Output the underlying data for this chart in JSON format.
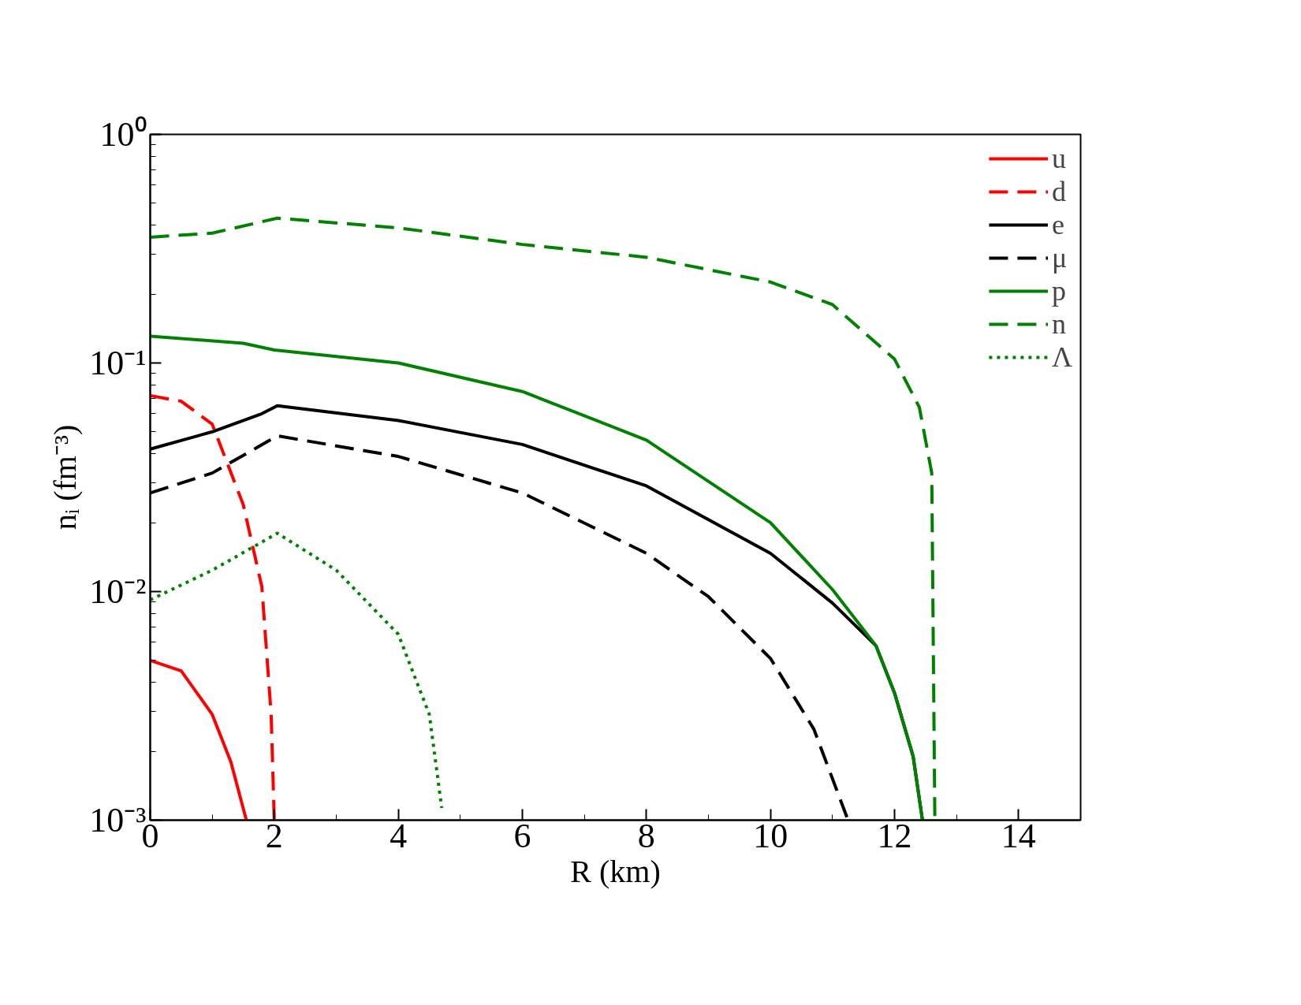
{
  "chart_data": {
    "type": "line",
    "xlabel": "R (km)",
    "ylabel": "nᵢ (fm⁻³)",
    "log": "y",
    "grid": false,
    "legend": "top right",
    "xlim": [
      0,
      15
    ],
    "ylim": [
      0.001,
      1
    ],
    "xticks": [
      0,
      2,
      4,
      6,
      8,
      10,
      12,
      14
    ],
    "yticks": [
      {
        "value": 0.001,
        "label": "10⁻³"
      },
      {
        "value": 0.01,
        "label": "10⁻²"
      },
      {
        "value": 0.1,
        "label": "10⁻¹"
      },
      {
        "value": 1,
        "label": "10⁰"
      }
    ],
    "series": [
      {
        "name": "u",
        "color": "#ff0000",
        "line_style": "solid",
        "x": [
          0,
          0.5,
          1,
          1.3,
          1.55
        ],
        "values": [
          0.005,
          0.0045,
          0.0029,
          0.0018,
          0.001
        ]
      },
      {
        "name": "d",
        "color": "#ff0000",
        "line_style": "dashed",
        "x": [
          0,
          0.5,
          1,
          1.5,
          1.8,
          1.95,
          2.0
        ],
        "values": [
          0.072,
          0.068,
          0.054,
          0.024,
          0.0105,
          0.0029,
          0.001
        ]
      },
      {
        "name": "e",
        "color": "#000000",
        "line_style": "solid",
        "x": [
          0,
          1,
          1.8,
          2.05,
          4,
          6,
          8,
          10,
          11,
          11.7,
          12,
          12.3,
          12.45
        ],
        "values": [
          0.042,
          0.05,
          0.06,
          0.065,
          0.056,
          0.044,
          0.029,
          0.0147,
          0.0089,
          0.0058,
          0.0036,
          0.0019,
          0.001
        ]
      },
      {
        "name": "μ",
        "color": "#000000",
        "line_style": "dashed",
        "x": [
          0,
          1,
          2.05,
          4,
          6,
          8,
          9,
          10,
          10.7,
          11.25
        ],
        "values": [
          0.027,
          0.033,
          0.048,
          0.039,
          0.027,
          0.0147,
          0.0095,
          0.0051,
          0.0025,
          0.001
        ]
      },
      {
        "name": "p",
        "color": "#008000",
        "line_style": "solid",
        "x": [
          0,
          1.5,
          2,
          4,
          6,
          8,
          10,
          11,
          11.7,
          12,
          12.3,
          12.45
        ],
        "values": [
          0.131,
          0.122,
          0.114,
          0.1,
          0.075,
          0.046,
          0.02,
          0.0102,
          0.0058,
          0.0036,
          0.0019,
          0.001
        ]
      },
      {
        "name": "n",
        "color": "#008000",
        "line_style": "dashed",
        "x": [
          0,
          1,
          2.05,
          4,
          6,
          8,
          10,
          11,
          12,
          12.4,
          12.6,
          12.65
        ],
        "values": [
          0.355,
          0.37,
          0.43,
          0.39,
          0.33,
          0.29,
          0.226,
          0.18,
          0.104,
          0.064,
          0.033,
          0.001
        ]
      },
      {
        "name": "Λ",
        "color": "#008000",
        "line_style": "dotted",
        "x": [
          0,
          1,
          2.05,
          3,
          4,
          4.5,
          4.7
        ],
        "values": [
          0.0092,
          0.0124,
          0.018,
          0.0124,
          0.0065,
          0.0029,
          0.00113
        ]
      }
    ]
  }
}
